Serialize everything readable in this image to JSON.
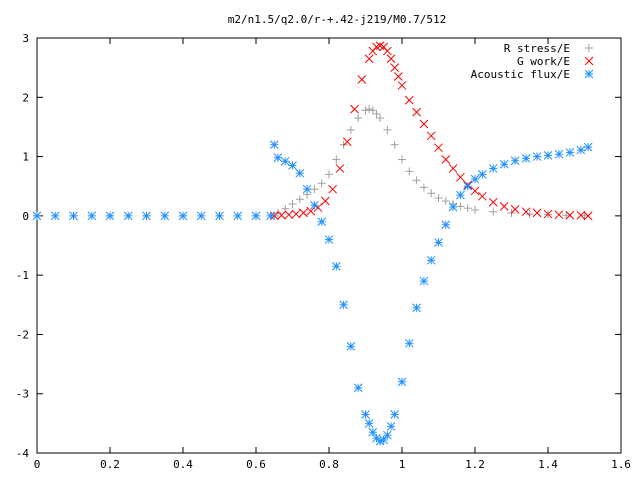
{
  "chart_data": {
    "type": "scatter",
    "title": "m2/n1.5/q2.0/r-+.42-j219/M0.7/512",
    "xlabel": "",
    "ylabel": "",
    "xlim": [
      0,
      1.6
    ],
    "ylim": [
      -4,
      3
    ],
    "x_ticks": [
      0,
      0.2,
      0.4,
      0.6,
      0.8,
      1,
      1.2,
      1.4,
      1.6
    ],
    "x_tick_labels": [
      "0",
      "0.2",
      "0.4",
      "0.6",
      "0.8",
      "1",
      "1.2",
      "1.4",
      "1.6"
    ],
    "y_ticks": [
      -4,
      -3,
      -2,
      -1,
      0,
      1,
      2,
      3
    ],
    "y_tick_labels": [
      "-4",
      "-3",
      "-2",
      "-1",
      "0",
      "1",
      "2",
      "3"
    ],
    "grid": false,
    "legend_position": "top-right",
    "series": [
      {
        "name": "R stress/E",
        "marker": "plus",
        "color": "#a0a0a0",
        "x": [
          0.0,
          0.1,
          0.2,
          0.3,
          0.4,
          0.5,
          0.6,
          0.65,
          0.66,
          0.68,
          0.7,
          0.72,
          0.74,
          0.76,
          0.78,
          0.8,
          0.82,
          0.84,
          0.86,
          0.88,
          0.9,
          0.91,
          0.92,
          0.93,
          0.94,
          0.96,
          0.98,
          1.0,
          1.02,
          1.04,
          1.06,
          1.08,
          1.1,
          1.12,
          1.14,
          1.16,
          1.18,
          1.2,
          1.25,
          1.3,
          1.35,
          1.4,
          1.45,
          1.5
        ],
        "y": [
          0.0,
          0.0,
          0.0,
          0.0,
          0.0,
          0.0,
          0.0,
          0.0,
          0.05,
          0.12,
          0.2,
          0.28,
          0.36,
          0.45,
          0.55,
          0.7,
          0.95,
          1.2,
          1.45,
          1.65,
          1.78,
          1.8,
          1.78,
          1.72,
          1.65,
          1.45,
          1.2,
          0.95,
          0.75,
          0.6,
          0.48,
          0.38,
          0.3,
          0.25,
          0.2,
          0.16,
          0.13,
          0.1,
          0.07,
          0.05,
          0.03,
          0.02,
          0.01,
          0.01
        ]
      },
      {
        "name": "G work/E",
        "marker": "cross",
        "color": "#ff0000",
        "x": [
          0.65,
          0.67,
          0.69,
          0.71,
          0.73,
          0.75,
          0.77,
          0.79,
          0.81,
          0.83,
          0.85,
          0.87,
          0.89,
          0.91,
          0.92,
          0.93,
          0.94,
          0.95,
          0.96,
          0.97,
          0.98,
          0.99,
          1.0,
          1.02,
          1.04,
          1.06,
          1.08,
          1.1,
          1.12,
          1.14,
          1.16,
          1.18,
          1.2,
          1.22,
          1.25,
          1.28,
          1.31,
          1.34,
          1.37,
          1.4,
          1.43,
          1.46,
          1.49,
          1.51
        ],
        "y": [
          0.0,
          0.01,
          0.02,
          0.03,
          0.05,
          0.08,
          0.14,
          0.25,
          0.45,
          0.8,
          1.25,
          1.8,
          2.3,
          2.65,
          2.78,
          2.85,
          2.87,
          2.85,
          2.78,
          2.65,
          2.5,
          2.35,
          2.2,
          1.95,
          1.75,
          1.55,
          1.35,
          1.15,
          0.95,
          0.8,
          0.65,
          0.52,
          0.42,
          0.33,
          0.23,
          0.16,
          0.11,
          0.07,
          0.05,
          0.03,
          0.02,
          0.01,
          0.01,
          0.0
        ]
      },
      {
        "name": "Acoustic flux/E",
        "marker": "star",
        "color": "#1e90ff",
        "x": [
          0.0,
          0.05,
          0.1,
          0.15,
          0.2,
          0.25,
          0.3,
          0.35,
          0.4,
          0.45,
          0.5,
          0.55,
          0.6,
          0.64,
          0.65,
          0.66,
          0.68,
          0.7,
          0.72,
          0.74,
          0.76,
          0.78,
          0.8,
          0.82,
          0.84,
          0.86,
          0.88,
          0.9,
          0.91,
          0.92,
          0.93,
          0.94,
          0.95,
          0.96,
          0.97,
          0.98,
          1.0,
          1.02,
          1.04,
          1.06,
          1.08,
          1.1,
          1.12,
          1.14,
          1.16,
          1.18,
          1.2,
          1.22,
          1.25,
          1.28,
          1.31,
          1.34,
          1.37,
          1.4,
          1.43,
          1.46,
          1.49,
          1.51
        ],
        "y": [
          0.0,
          0.0,
          0.0,
          0.0,
          0.0,
          0.0,
          0.0,
          0.0,
          0.0,
          0.0,
          0.0,
          0.0,
          0.0,
          0.0,
          1.2,
          0.98,
          0.92,
          0.85,
          0.72,
          0.45,
          0.18,
          -0.1,
          -0.4,
          -0.85,
          -1.5,
          -2.2,
          -2.9,
          -3.35,
          -3.5,
          -3.65,
          -3.75,
          -3.8,
          -3.78,
          -3.7,
          -3.55,
          -3.35,
          -2.8,
          -2.15,
          -1.55,
          -1.1,
          -0.75,
          -0.45,
          -0.15,
          0.15,
          0.35,
          0.5,
          0.62,
          0.7,
          0.8,
          0.87,
          0.93,
          0.97,
          1.0,
          1.02,
          1.04,
          1.07,
          1.11,
          1.16
        ]
      }
    ]
  }
}
